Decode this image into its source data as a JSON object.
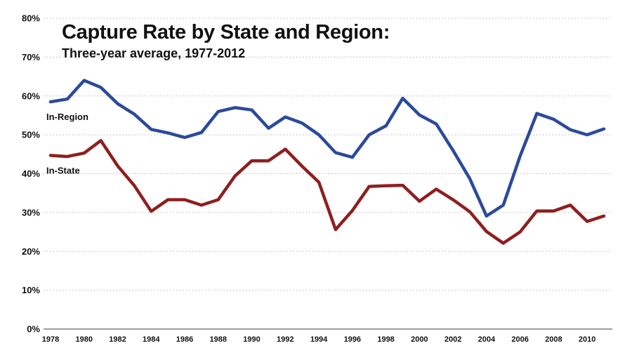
{
  "chart_data": {
    "type": "line",
    "title": "Capture Rate by State and Region:",
    "subtitle": "Three-year average, 1977-2012",
    "ylim": [
      0,
      80
    ],
    "y_ticks": [
      "0%",
      "10%",
      "20%",
      "30%",
      "40%",
      "50%",
      "60%",
      "70%",
      "80%"
    ],
    "y_tick_values": [
      0,
      10,
      20,
      30,
      40,
      50,
      60,
      70,
      80
    ],
    "x_tick_labels": [
      "1978",
      "1980",
      "1982",
      "1984",
      "1986",
      "1988",
      "1990",
      "1992",
      "1994",
      "1996",
      "1998",
      "2000",
      "2002",
      "2004",
      "2006",
      "2008",
      "2010"
    ],
    "x_tick_values": [
      1978,
      1980,
      1982,
      1984,
      1986,
      1988,
      1990,
      1992,
      1994,
      1996,
      1998,
      2000,
      2002,
      2004,
      2006,
      2008,
      2010
    ],
    "xlim": [
      1978,
      2011
    ],
    "grid": "horizontal-dotted",
    "x": [
      1978,
      1979,
      1980,
      1981,
      1982,
      1983,
      1984,
      1985,
      1986,
      1987,
      1988,
      1989,
      1990,
      1991,
      1992,
      1993,
      1994,
      1995,
      1996,
      1997,
      1998,
      1999,
      2000,
      2001,
      2002,
      2003,
      2004,
      2005,
      2006,
      2007,
      2008,
      2009,
      2010,
      2011
    ],
    "series": [
      {
        "name": "In-Region",
        "color": "#2b4a9b",
        "values": [
          58.5,
          59.2,
          64.0,
          62.2,
          58.0,
          55.3,
          51.4,
          50.5,
          49.3,
          50.6,
          56.0,
          57.0,
          56.4,
          51.7,
          54.6,
          53.0,
          50.0,
          45.4,
          44.2,
          50.0,
          52.3,
          59.4,
          55.1,
          52.8,
          46.0,
          38.7,
          29.1,
          31.9,
          44.5,
          55.5,
          54.0,
          51.3,
          50.0,
          51.5
        ]
      },
      {
        "name": "In-State",
        "color": "#8e1f1f",
        "values": [
          44.7,
          44.4,
          45.3,
          48.5,
          42.0,
          36.9,
          30.3,
          33.3,
          33.3,
          31.9,
          33.3,
          39.4,
          43.3,
          43.3,
          46.3,
          41.9,
          37.8,
          25.6,
          30.5,
          36.7,
          36.9,
          37.0,
          32.9,
          36.0,
          33.3,
          30.2,
          25.1,
          22.1,
          25.0,
          30.4,
          30.4,
          31.9,
          27.7,
          29.1
        ]
      }
    ]
  }
}
